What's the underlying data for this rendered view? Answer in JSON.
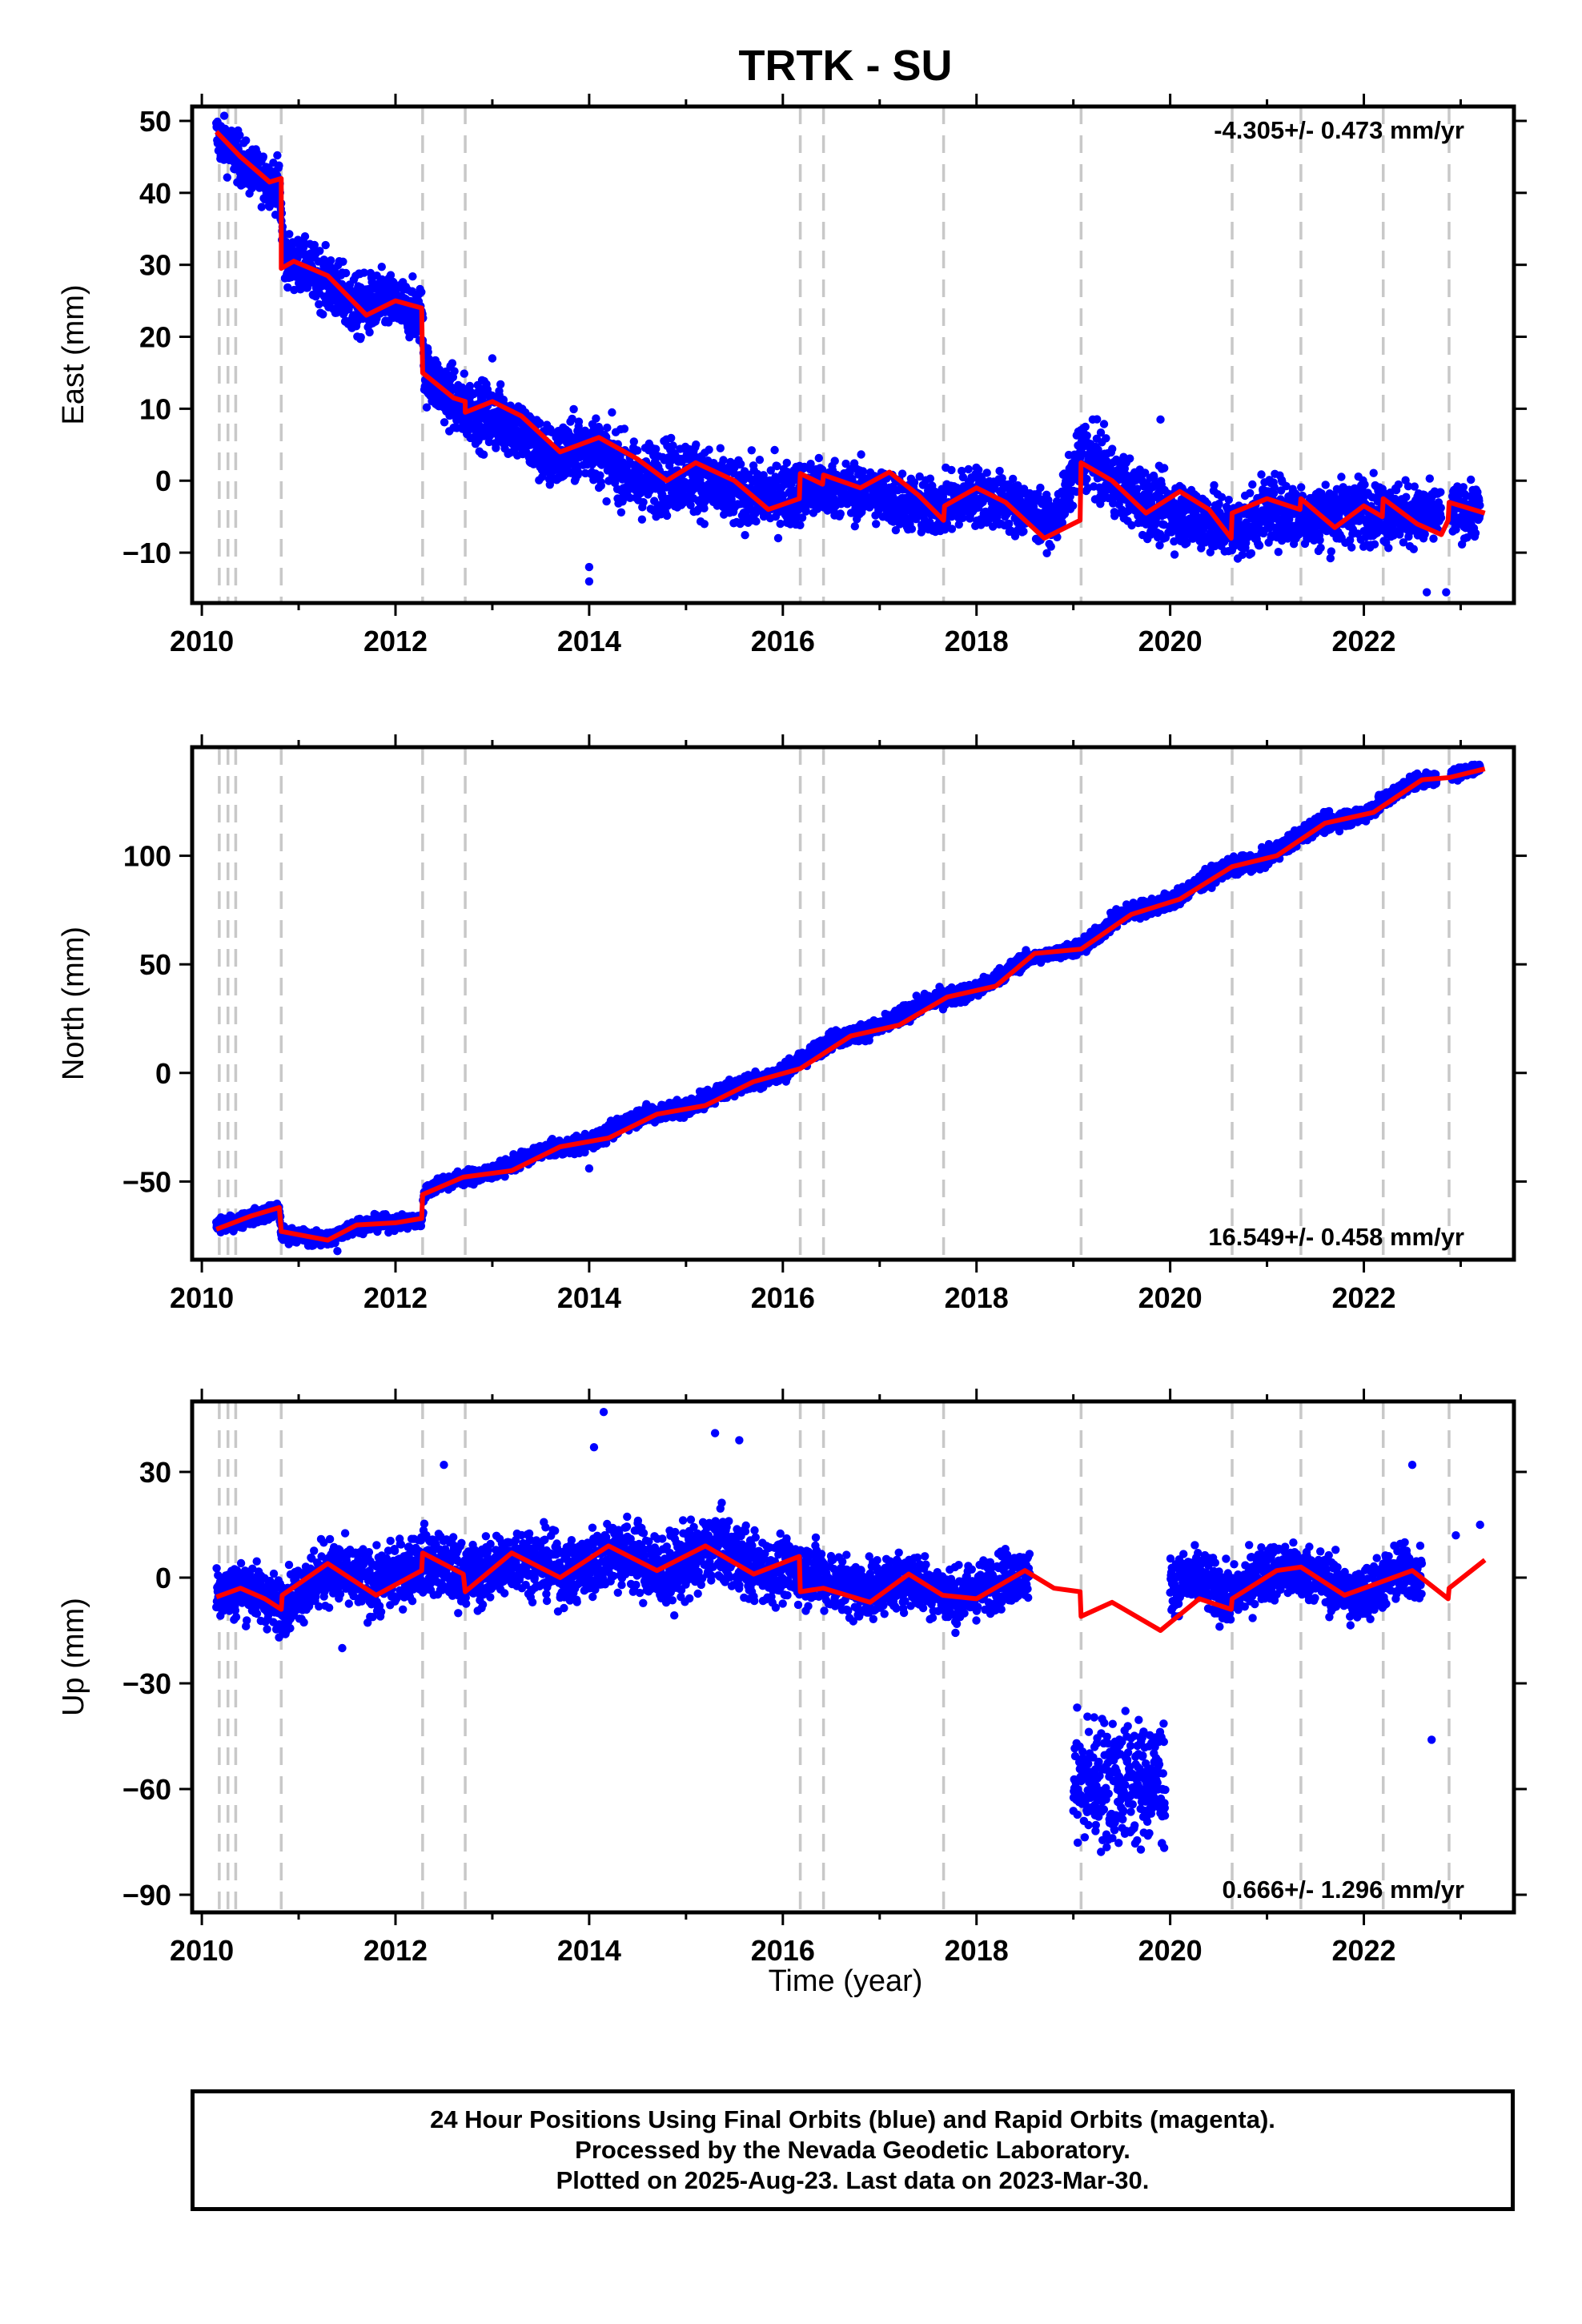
{
  "figure_title": "TRTK - SU",
  "xlabel": "Time (year)",
  "colors": {
    "observations": "#0000ff",
    "model": "#ff0000",
    "offsets": "#c8c8c8"
  },
  "footer": {
    "line1": "24 Hour Positions Using Final Orbits (blue) and Rapid Orbits (magenta).",
    "line2": "Processed by the Nevada Geodetic Laboratory.",
    "line3": "Plotted on 2025-Aug-23. Last data on 2023-Mar-30."
  },
  "chart_data": [
    {
      "type": "scatter",
      "panel": "east",
      "title": "TRTK - SU",
      "ylabel": "East (mm)",
      "xlabel": "",
      "rate": "-4.305+/- 0.473 mm/yr",
      "rate_position": "top-right",
      "xlim": [
        2009.9,
        2023.55
      ],
      "ylim": [
        -17,
        52
      ],
      "xticks": [
        "2010",
        "2012",
        "2014",
        "2016",
        "2018",
        "2020",
        "2022"
      ],
      "yticks": [
        "50",
        "40",
        "30",
        "20",
        "10",
        "0",
        "−10"
      ],
      "ytick_values": [
        50,
        40,
        30,
        20,
        10,
        0,
        -10
      ],
      "offset_lines": [
        2010.18,
        2010.27,
        2010.35,
        2010.82,
        2012.28,
        2012.72,
        2016.18,
        2016.42,
        2017.66,
        2019.08,
        2020.64,
        2021.35,
        2022.2,
        2022.88
      ],
      "grid": false,
      "observations_band": [
        [
          2010.15,
          48,
          3
        ],
        [
          2010.3,
          46,
          3
        ],
        [
          2010.5,
          43,
          3
        ],
        [
          2010.8,
          41,
          3
        ],
        [
          2010.85,
          31,
          3
        ],
        [
          2011.2,
          28.5,
          3.5
        ],
        [
          2011.6,
          24,
          4
        ],
        [
          2011.9,
          25,
          3.5
        ],
        [
          2012.28,
          23,
          3.5
        ],
        [
          2012.3,
          15,
          3.5
        ],
        [
          2012.7,
          10,
          4
        ],
        [
          2013.2,
          8,
          4
        ],
        [
          2013.6,
          3,
          4
        ],
        [
          2014.0,
          5,
          4
        ],
        [
          2014.5,
          0,
          4.5
        ],
        [
          2015.0,
          1,
          4.5
        ],
        [
          2015.5,
          -2,
          4
        ],
        [
          2016.0,
          -2,
          4
        ],
        [
          2016.5,
          -1,
          3.5
        ],
        [
          2017.0,
          -2,
          3.5
        ],
        [
          2017.5,
          -4,
          3.5
        ],
        [
          2018.0,
          -2,
          3.5
        ],
        [
          2018.5,
          -4,
          3.5
        ],
        [
          2018.8,
          -6,
          2.5
        ],
        [
          2019.1,
          4,
          4
        ],
        [
          2019.5,
          -1,
          4
        ],
        [
          2019.9,
          -4,
          4
        ],
        [
          2020.3,
          -5,
          4
        ],
        [
          2020.7,
          -7,
          4
        ],
        [
          2021.0,
          -4,
          4
        ],
        [
          2021.5,
          -5,
          4
        ],
        [
          2022.0,
          -4,
          4
        ],
        [
          2022.6,
          -5,
          3.5
        ],
        [
          2023.2,
          -4,
          3
        ]
      ],
      "observation_gaps": [
        [
          2022.8,
          2022.9
        ]
      ],
      "model": [
        [
          2010.15,
          48.5
        ],
        [
          2010.4,
          45
        ],
        [
          2010.7,
          41.5
        ],
        [
          2010.82,
          42
        ],
        [
          2010.82,
          29.5
        ],
        [
          2010.95,
          30.5
        ],
        [
          2011.3,
          28.5
        ],
        [
          2011.7,
          23
        ],
        [
          2012.0,
          25
        ],
        [
          2012.27,
          24
        ],
        [
          2012.28,
          15
        ],
        [
          2012.6,
          11.5
        ],
        [
          2012.72,
          11
        ],
        [
          2012.72,
          9.5
        ],
        [
          2013.0,
          11
        ],
        [
          2013.3,
          9
        ],
        [
          2013.7,
          4
        ],
        [
          2014.1,
          6
        ],
        [
          2014.5,
          3
        ],
        [
          2014.8,
          0
        ],
        [
          2015.1,
          2.5
        ],
        [
          2015.5,
          0
        ],
        [
          2015.85,
          -4
        ],
        [
          2016.17,
          -2.5
        ],
        [
          2016.18,
          1
        ],
        [
          2016.41,
          -0.5
        ],
        [
          2016.42,
          0.8
        ],
        [
          2016.8,
          -1
        ],
        [
          2017.1,
          1.2
        ],
        [
          2017.4,
          -2
        ],
        [
          2017.66,
          -5.5
        ],
        [
          2017.67,
          -3.5
        ],
        [
          2018.0,
          -1
        ],
        [
          2018.3,
          -3
        ],
        [
          2018.7,
          -8
        ],
        [
          2019.07,
          -5.5
        ],
        [
          2019.08,
          2.5
        ],
        [
          2019.4,
          0
        ],
        [
          2019.75,
          -4.5
        ],
        [
          2020.1,
          -1.5
        ],
        [
          2020.4,
          -4
        ],
        [
          2020.63,
          -8
        ],
        [
          2020.64,
          -4.5
        ],
        [
          2021.0,
          -2.5
        ],
        [
          2021.34,
          -4
        ],
        [
          2021.35,
          -2.5
        ],
        [
          2021.7,
          -6.5
        ],
        [
          2022.0,
          -3.5
        ],
        [
          2022.19,
          -5
        ],
        [
          2022.2,
          -2.5
        ],
        [
          2022.55,
          -6
        ],
        [
          2022.8,
          -7.5
        ],
        [
          2022.87,
          -5.5
        ],
        [
          2022.88,
          -3
        ],
        [
          2023.25,
          -4.5
        ]
      ],
      "outliers": [
        [
          2014.0,
          -12
        ],
        [
          2014.0,
          -14
        ],
        [
          2022.65,
          -15.5
        ],
        [
          2022.85,
          -15.5
        ],
        [
          2019.2,
          8.5
        ],
        [
          2019.9,
          8.5
        ],
        [
          2013.0,
          17
        ]
      ]
    },
    {
      "type": "scatter",
      "panel": "north",
      "ylabel": "North (mm)",
      "xlabel": "",
      "rate": "16.549+/- 0.458 mm/yr",
      "rate_position": "bottom-right",
      "xlim": [
        2009.9,
        2023.55
      ],
      "ylim": [
        -86,
        150
      ],
      "xticks": [
        "2010",
        "2012",
        "2014",
        "2016",
        "2018",
        "2020",
        "2022"
      ],
      "yticks": [
        "100",
        "50",
        "0",
        "−50"
      ],
      "ytick_values": [
        100,
        50,
        0,
        -50
      ],
      "offset_lines": [
        2010.18,
        2010.27,
        2010.35,
        2010.82,
        2012.28,
        2012.72,
        2016.18,
        2016.42,
        2017.66,
        2019.08,
        2020.64,
        2021.35,
        2022.2,
        2022.88
      ],
      "grid": false,
      "observations_band": [
        [
          2010.15,
          -71,
          3
        ],
        [
          2010.8,
          -63,
          3
        ],
        [
          2010.82,
          -74,
          3
        ],
        [
          2011.3,
          -77,
          3
        ],
        [
          2011.6,
          -70,
          3
        ],
        [
          2012.27,
          -68,
          3
        ],
        [
          2012.3,
          -55,
          3
        ],
        [
          2012.5,
          -50,
          3
        ],
        [
          2013.0,
          -46,
          3
        ],
        [
          2013.5,
          -36,
          3
        ],
        [
          2014.0,
          -32,
          3.5
        ],
        [
          2014.5,
          -20,
          3.5
        ],
        [
          2015.0,
          -16,
          3.5
        ],
        [
          2015.5,
          -6,
          3.5
        ],
        [
          2016.0,
          0,
          3.5
        ],
        [
          2016.5,
          15,
          3.5
        ],
        [
          2017.0,
          21,
          3.5
        ],
        [
          2017.5,
          33,
          3.5
        ],
        [
          2018.0,
          38,
          3.5
        ],
        [
          2018.5,
          52,
          3
        ],
        [
          2018.8,
          55,
          2
        ],
        [
          2019.1,
          58,
          3.5
        ],
        [
          2019.5,
          73,
          3.5
        ],
        [
          2020.0,
          79,
          3.5
        ],
        [
          2020.5,
          93,
          3.5
        ],
        [
          2021.0,
          99,
          3.5
        ],
        [
          2021.5,
          114,
          3.5
        ],
        [
          2022.0,
          119,
          3.5
        ],
        [
          2022.5,
          134,
          3
        ],
        [
          2022.85,
          136,
          2
        ],
        [
          2023.2,
          141,
          2.5
        ]
      ],
      "observation_gaps": [
        [
          2022.75,
          2022.9
        ]
      ],
      "model": [
        [
          2010.15,
          -72
        ],
        [
          2010.5,
          -66
        ],
        [
          2010.8,
          -62
        ],
        [
          2010.82,
          -73
        ],
        [
          2011.3,
          -77
        ],
        [
          2011.6,
          -70
        ],
        [
          2012.0,
          -69
        ],
        [
          2012.27,
          -67
        ],
        [
          2012.28,
          -56
        ],
        [
          2012.7,
          -48
        ],
        [
          2013.2,
          -45
        ],
        [
          2013.7,
          -34
        ],
        [
          2014.2,
          -30
        ],
        [
          2014.7,
          -19
        ],
        [
          2015.2,
          -15
        ],
        [
          2015.7,
          -4
        ],
        [
          2016.18,
          2
        ],
        [
          2016.7,
          17
        ],
        [
          2017.2,
          22
        ],
        [
          2017.7,
          35
        ],
        [
          2018.2,
          40
        ],
        [
          2018.6,
          55
        ],
        [
          2019.08,
          57
        ],
        [
          2019.6,
          73
        ],
        [
          2020.1,
          80
        ],
        [
          2020.64,
          95
        ],
        [
          2021.1,
          100
        ],
        [
          2021.6,
          115
        ],
        [
          2022.1,
          120
        ],
        [
          2022.6,
          135
        ],
        [
          2022.88,
          136
        ],
        [
          2023.25,
          140
        ]
      ],
      "outliers": [
        [
          2014.0,
          -44
        ],
        [
          2011.4,
          -82
        ]
      ]
    },
    {
      "type": "scatter",
      "panel": "up",
      "ylabel": "Up (mm)",
      "xlabel": "Time (year)",
      "rate": "0.666+/- 1.296 mm/yr",
      "rate_position": "bottom-right",
      "xlim": [
        2009.9,
        2023.55
      ],
      "ylim": [
        -95,
        50
      ],
      "xticks": [
        "2010",
        "2012",
        "2014",
        "2016",
        "2018",
        "2020",
        "2022"
      ],
      "yticks": [
        "30",
        "0",
        "−30",
        "−60",
        "−90"
      ],
      "ytick_values": [
        30,
        0,
        -30,
        -60,
        -90
      ],
      "offset_lines": [
        2010.18,
        2010.27,
        2010.35,
        2010.82,
        2012.28,
        2012.72,
        2016.18,
        2016.42,
        2017.66,
        2019.08,
        2020.64,
        2021.35,
        2022.2,
        2022.88
      ],
      "grid": false,
      "observations_band": [
        [
          2010.15,
          -4,
          7
        ],
        [
          2010.5,
          -3,
          7
        ],
        [
          2010.8,
          -8,
          7
        ],
        [
          2011.3,
          2,
          8
        ],
        [
          2011.8,
          -2,
          8
        ],
        [
          2012.3,
          5,
          8
        ],
        [
          2012.8,
          0,
          8
        ],
        [
          2013.3,
          6,
          8
        ],
        [
          2013.8,
          1,
          8
        ],
        [
          2014.3,
          8,
          9
        ],
        [
          2014.8,
          1,
          9
        ],
        [
          2015.3,
          9,
          9
        ],
        [
          2015.8,
          2,
          8
        ],
        [
          2016.2,
          2,
          8
        ],
        [
          2016.8,
          -4,
          7
        ],
        [
          2017.3,
          0,
          7
        ],
        [
          2017.8,
          -6,
          7
        ],
        [
          2018.3,
          0,
          7
        ],
        [
          2018.55,
          1,
          6
        ]
      ],
      "observation_cloud": [
        [
          2019.0,
          2019.95,
          -58,
          9
        ]
      ],
      "observations_band2": [
        [
          2020.0,
          -2,
          7
        ],
        [
          2020.3,
          0,
          7
        ],
        [
          2020.6,
          -6,
          7
        ],
        [
          2021.0,
          2,
          7
        ],
        [
          2021.5,
          1,
          7
        ],
        [
          2021.9,
          -6,
          7
        ],
        [
          2022.4,
          2,
          7
        ],
        [
          2022.6,
          0,
          6
        ]
      ],
      "model": [
        [
          2010.15,
          -5.5
        ],
        [
          2010.4,
          -3
        ],
        [
          2010.65,
          -6
        ],
        [
          2010.82,
          -9
        ],
        [
          2010.83,
          -5
        ],
        [
          2011.3,
          4
        ],
        [
          2011.8,
          -5
        ],
        [
          2012.27,
          2
        ],
        [
          2012.28,
          7
        ],
        [
          2012.7,
          1
        ],
        [
          2012.72,
          -4
        ],
        [
          2013.2,
          7
        ],
        [
          2013.7,
          0
        ],
        [
          2014.2,
          9
        ],
        [
          2014.7,
          2
        ],
        [
          2015.2,
          9
        ],
        [
          2015.7,
          1
        ],
        [
          2016.17,
          6
        ],
        [
          2016.18,
          -4
        ],
        [
          2016.42,
          -3
        ],
        [
          2016.9,
          -7
        ],
        [
          2017.3,
          1
        ],
        [
          2017.65,
          -5
        ],
        [
          2018.0,
          -6
        ],
        [
          2018.5,
          2
        ],
        [
          2018.8,
          -3
        ],
        [
          2019.07,
          -4
        ],
        [
          2019.08,
          -11
        ],
        [
          2019.4,
          -7
        ],
        [
          2019.9,
          -15
        ],
        [
          2020.3,
          -6
        ],
        [
          2020.63,
          -9
        ],
        [
          2020.64,
          -6
        ],
        [
          2021.1,
          2
        ],
        [
          2021.35,
          3
        ],
        [
          2021.8,
          -5
        ],
        [
          2022.2,
          -1
        ],
        [
          2022.5,
          2
        ],
        [
          2022.87,
          -6
        ],
        [
          2022.88,
          -3
        ],
        [
          2023.25,
          5
        ]
      ],
      "outliers": [
        [
          2014.15,
          47
        ],
        [
          2015.3,
          41
        ],
        [
          2015.55,
          39
        ],
        [
          2012.5,
          32
        ],
        [
          2022.5,
          32
        ],
        [
          2022.7,
          -46
        ],
        [
          2011.45,
          -20
        ],
        [
          2023.2,
          15
        ],
        [
          2022.95,
          12
        ],
        [
          2014.05,
          37
        ]
      ]
    }
  ]
}
